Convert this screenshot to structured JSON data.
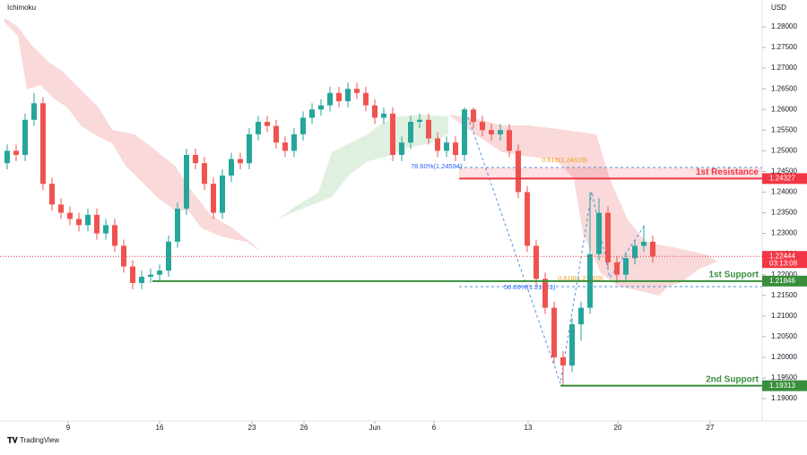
{
  "chart_data": {
    "type": "candlestick",
    "title": "Ichimoku",
    "y_axis_label": "USD",
    "brand": "TradingView",
    "xlim": [
      0,
      85
    ],
    "ylim": [
      1.1846,
      1.2865
    ],
    "grid": false,
    "xticks": [
      {
        "value": 7.6,
        "label": "9"
      },
      {
        "value": 17.8,
        "label": "16"
      },
      {
        "value": 28.1,
        "label": "23"
      },
      {
        "value": 33.9,
        "label": "26"
      },
      {
        "value": 41.8,
        "label": "Jun"
      },
      {
        "value": 48.4,
        "label": "6"
      },
      {
        "value": 58.9,
        "label": "13"
      },
      {
        "value": 68.9,
        "label": "20"
      },
      {
        "value": 79.2,
        "label": "27"
      }
    ],
    "yticks": [
      {
        "value": 1.19,
        "label": "1.19000"
      },
      {
        "value": 1.195,
        "label": "1.19500"
      },
      {
        "value": 1.2,
        "label": "1.20000"
      },
      {
        "value": 1.205,
        "label": "1.20500"
      },
      {
        "value": 1.21,
        "label": "1.21000"
      },
      {
        "value": 1.215,
        "label": "1.21500"
      },
      {
        "value": 1.22,
        "label": "1.22000"
      },
      {
        "value": 1.225,
        "label": "1.22500"
      },
      {
        "value": 1.23,
        "label": "1.23000"
      },
      {
        "value": 1.235,
        "label": "1.23500"
      },
      {
        "value": 1.24,
        "label": "1.24000"
      },
      {
        "value": 1.245,
        "label": "1.24500"
      },
      {
        "value": 1.25,
        "label": "1.25000"
      },
      {
        "value": 1.255,
        "label": "1.25500"
      },
      {
        "value": 1.26,
        "label": "1.26000"
      },
      {
        "value": 1.265,
        "label": "1.26500"
      },
      {
        "value": 1.27,
        "label": "1.27000"
      },
      {
        "value": 1.275,
        "label": "1.27500"
      },
      {
        "value": 1.28,
        "label": "1.28000"
      }
    ],
    "up_color": "#26a69a",
    "down_color": "#ef5350",
    "x": [
      0.8,
      1.8,
      2.8,
      3.8,
      4.8,
      5.8,
      6.8,
      7.8,
      8.8,
      9.8,
      10.8,
      11.8,
      12.8,
      13.8,
      14.8,
      15.8,
      16.8,
      17.8,
      18.8,
      19.8,
      20.8,
      21.8,
      22.8,
      23.8,
      24.8,
      25.8,
      26.8,
      27.8,
      28.8,
      29.8,
      30.8,
      31.8,
      32.8,
      33.8,
      34.8,
      35.8,
      36.8,
      37.8,
      38.8,
      39.8,
      40.8,
      41.8,
      42.8,
      43.8,
      44.8,
      45.8,
      46.8,
      47.8,
      48.8,
      49.8,
      50.8,
      51.8,
      52.8,
      53.8,
      54.8,
      55.8,
      56.8,
      57.8,
      58.8,
      59.8,
      60.8,
      61.8,
      62.8,
      63.8,
      64.8,
      65.8,
      66.8,
      67.8,
      68.8,
      69.8,
      70.8,
      71.8,
      72.8
    ],
    "open": [
      1.247,
      1.25,
      1.249,
      1.2575,
      1.2615,
      1.242,
      1.237,
      1.235,
      1.2335,
      1.232,
      1.2345,
      1.23,
      1.232,
      1.227,
      1.222,
      1.218,
      1.2195,
      1.22,
      1.221,
      1.228,
      1.236,
      1.249,
      1.247,
      1.242,
      1.235,
      1.244,
      1.248,
      1.247,
      1.254,
      1.257,
      1.256,
      1.252,
      1.25,
      1.254,
      1.258,
      1.26,
      1.261,
      1.264,
      1.262,
      1.265,
      1.264,
      1.261,
      1.258,
      1.259,
      1.249,
      1.252,
      1.257,
      1.2575,
      1.253,
      1.25,
      1.252,
      1.249,
      1.26,
      1.257,
      1.255,
      1.254,
      1.255,
      1.25,
      1.24,
      1.227,
      1.219,
      1.212,
      1.2,
      1.198,
      1.208,
      1.212,
      1.225,
      1.235,
      1.223,
      1.22,
      1.224,
      1.227,
      1.228
    ],
    "high": [
      1.2515,
      1.2515,
      1.259,
      1.264,
      1.263,
      1.2435,
      1.2385,
      1.2365,
      1.235,
      1.236,
      1.236,
      1.2335,
      1.2335,
      1.2285,
      1.2235,
      1.221,
      1.2215,
      1.2225,
      1.2295,
      1.2375,
      1.2505,
      1.2505,
      1.2485,
      1.2435,
      1.2455,
      1.2495,
      1.2495,
      1.2555,
      1.2585,
      1.2585,
      1.2575,
      1.2535,
      1.2555,
      1.2595,
      1.2615,
      1.2625,
      1.2655,
      1.2655,
      1.2665,
      1.2665,
      1.2655,
      1.2625,
      1.2605,
      1.2605,
      1.2535,
      1.2585,
      1.259,
      1.259,
      1.2545,
      1.2535,
      1.2535,
      1.2605,
      1.2605,
      1.2585,
      1.2565,
      1.2565,
      1.2565,
      1.2515,
      1.2415,
      1.2285,
      1.2205,
      1.2135,
      1.2015,
      1.2095,
      1.2135,
      1.24,
      1.2385,
      1.2365,
      1.2245,
      1.2255,
      1.2285,
      1.232,
      1.2295
    ],
    "low": [
      1.2455,
      1.2475,
      1.2475,
      1.256,
      1.2405,
      1.2355,
      1.2335,
      1.232,
      1.2305,
      1.2305,
      1.2285,
      1.2285,
      1.2255,
      1.2205,
      1.2165,
      1.2165,
      1.218,
      1.2185,
      1.2195,
      1.2265,
      1.2345,
      1.2455,
      1.2405,
      1.2335,
      1.2335,
      1.2425,
      1.2455,
      1.2455,
      1.2525,
      1.2545,
      1.2505,
      1.2485,
      1.2485,
      1.2525,
      1.2565,
      1.2585,
      1.2595,
      1.2605,
      1.2605,
      1.2625,
      1.2595,
      1.2565,
      1.2565,
      1.2475,
      1.2475,
      1.2505,
      1.2555,
      1.2515,
      1.2485,
      1.2485,
      1.2475,
      1.2475,
      1.2555,
      1.2535,
      1.2525,
      1.2525,
      1.2485,
      1.2385,
      1.2255,
      1.2175,
      1.2105,
      1.1985,
      1.1931,
      1.1965,
      1.204,
      1.2105,
      1.2235,
      1.2215,
      1.218,
      1.2185,
      1.2225,
      1.2255,
      1.2229
    ],
    "close": [
      1.25,
      1.249,
      1.2575,
      1.2615,
      1.242,
      1.237,
      1.235,
      1.2335,
      1.232,
      1.2345,
      1.23,
      1.232,
      1.227,
      1.222,
      1.218,
      1.2195,
      1.22,
      1.221,
      1.228,
      1.236,
      1.249,
      1.247,
      1.242,
      1.235,
      1.244,
      1.248,
      1.247,
      1.254,
      1.257,
      1.256,
      1.252,
      1.25,
      1.254,
      1.258,
      1.26,
      1.261,
      1.264,
      1.262,
      1.265,
      1.264,
      1.261,
      1.258,
      1.259,
      1.249,
      1.252,
      1.257,
      1.2575,
      1.253,
      1.25,
      1.252,
      1.249,
      1.26,
      1.257,
      1.255,
      1.254,
      1.255,
      1.25,
      1.24,
      1.227,
      1.219,
      1.212,
      1.2,
      1.198,
      1.208,
      1.212,
      1.225,
      1.235,
      1.223,
      1.22,
      1.224,
      1.227,
      1.228,
      1.2244
    ],
    "levels": [
      {
        "name": "1st Resistance",
        "value": 1.24327,
        "color": "#f23645"
      },
      {
        "name": "1st Support",
        "value": 1.21846,
        "color": "#388e3c"
      },
      {
        "name": "2nd Support",
        "value": 1.19313,
        "color": "#388e3c"
      }
    ],
    "last_price": {
      "value": 1.22444,
      "countdown": "03:13:08",
      "color": "#f23645"
    },
    "fib_labels": [
      "78.60%(1.24594)",
      "0.618(1.24619)",
      "50.00%(1.21821)",
      "0.618(1.21809)"
    ]
  }
}
